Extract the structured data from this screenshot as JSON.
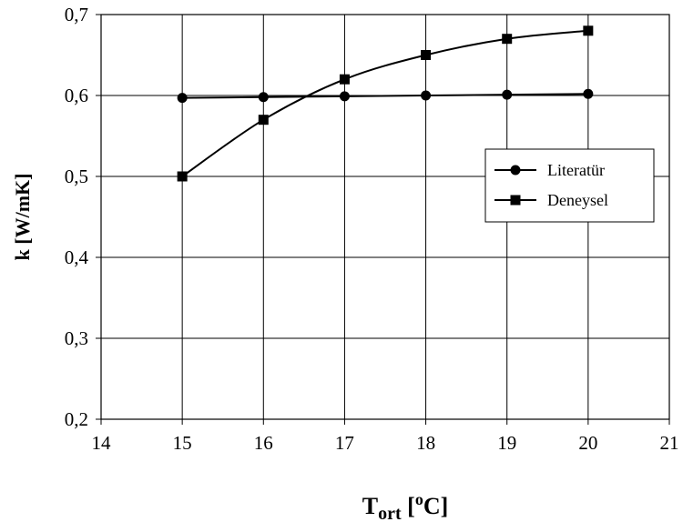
{
  "chart_data": {
    "type": "line",
    "title": "",
    "xlabel": {
      "main": "T",
      "sub": "ort",
      "unit_open": " [",
      "unit_sup": "o",
      "unit_close": "C]"
    },
    "ylabel": "k [W/mK]",
    "xlim": [
      14,
      21
    ],
    "ylim": [
      0.2,
      0.7
    ],
    "x_ticks": [
      14,
      15,
      16,
      17,
      18,
      19,
      20,
      21
    ],
    "x_tick_labels": [
      "14",
      "15",
      "16",
      "17",
      "18",
      "19",
      "20",
      "21"
    ],
    "y_ticks": [
      0.2,
      0.3,
      0.4,
      0.5,
      0.6,
      0.7
    ],
    "y_tick_labels": [
      "0,2",
      "0,3",
      "0,4",
      "0,5",
      "0,6",
      "0,7"
    ],
    "grid": true,
    "legend_position": "right",
    "series": [
      {
        "name": "Literatür",
        "marker": "circle",
        "smooth": false,
        "color": "#000000",
        "x": [
          15,
          16,
          17,
          18,
          19,
          20
        ],
        "y": [
          0.597,
          0.598,
          0.599,
          0.6,
          0.601,
          0.602
        ]
      },
      {
        "name": "Deneysel",
        "marker": "square",
        "smooth": true,
        "color": "#000000",
        "x": [
          15,
          16,
          17,
          18,
          19,
          20
        ],
        "y": [
          0.5,
          0.57,
          0.62,
          0.65,
          0.67,
          0.68
        ]
      }
    ]
  }
}
